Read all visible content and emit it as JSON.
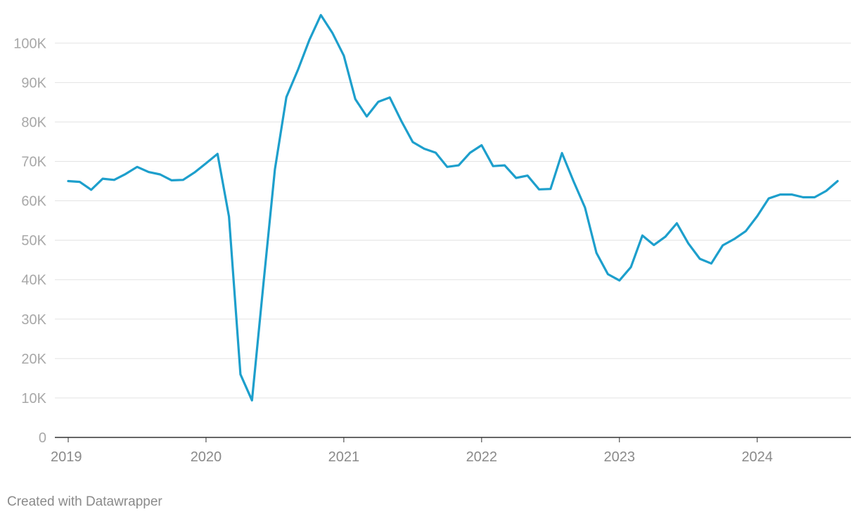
{
  "chart_data": {
    "type": "line",
    "title": "",
    "xlabel": "",
    "ylabel": "",
    "ylim": [
      0,
      107000
    ],
    "y_ticks": [
      {
        "value": 0,
        "label": "0"
      },
      {
        "value": 10000,
        "label": "10K"
      },
      {
        "value": 20000,
        "label": "20K"
      },
      {
        "value": 30000,
        "label": "30K"
      },
      {
        "value": 40000,
        "label": "40K"
      },
      {
        "value": 50000,
        "label": "50K"
      },
      {
        "value": 60000,
        "label": "60K"
      },
      {
        "value": 70000,
        "label": "70K"
      },
      {
        "value": 80000,
        "label": "80K"
      },
      {
        "value": 90000,
        "label": "90K"
      },
      {
        "value": 100000,
        "label": "100K"
      }
    ],
    "x_ticks": [
      "2019",
      "2020",
      "2021",
      "2022",
      "2023",
      "2024"
    ],
    "x_range": [
      "2019-01",
      "2024-08"
    ],
    "grid": true,
    "legend": "none",
    "line_color": "#1d9fcc",
    "series": [
      {
        "x": [
          "2019-01",
          "2019-02",
          "2019-03",
          "2019-04",
          "2019-05",
          "2019-06",
          "2019-07",
          "2019-08",
          "2019-09",
          "2019-10",
          "2019-11",
          "2019-12",
          "2020-01",
          "2020-02",
          "2020-03",
          "2020-04",
          "2020-05",
          "2020-06",
          "2020-07",
          "2020-08",
          "2020-09",
          "2020-10",
          "2020-11",
          "2020-12",
          "2021-01",
          "2021-02",
          "2021-03",
          "2021-04",
          "2021-05",
          "2021-06",
          "2021-07",
          "2021-08",
          "2021-09",
          "2021-10",
          "2021-11",
          "2021-12",
          "2022-01",
          "2022-02",
          "2022-03",
          "2022-04",
          "2022-05",
          "2022-06",
          "2022-07",
          "2022-08",
          "2022-09",
          "2022-10",
          "2022-11",
          "2022-12",
          "2023-01",
          "2023-02",
          "2023-03",
          "2023-04",
          "2023-05",
          "2023-06",
          "2023-07",
          "2023-08",
          "2023-09",
          "2023-10",
          "2023-11",
          "2023-12",
          "2024-01",
          "2024-02",
          "2024-03",
          "2024-04",
          "2024-05",
          "2024-06",
          "2024-07",
          "2024-08"
        ],
        "values": [
          65000,
          64800,
          62800,
          65600,
          65300,
          66800,
          68600,
          67300,
          66700,
          65200,
          65300,
          67200,
          69500,
          71900,
          56000,
          16000,
          9400,
          39000,
          68000,
          86300,
          93200,
          100800,
          107100,
          102600,
          96800,
          85800,
          81400,
          85100,
          86200,
          80300,
          74900,
          73200,
          72200,
          68600,
          69000,
          72200,
          74100,
          68800,
          69000,
          65800,
          66400,
          62900,
          63000,
          72100,
          65000,
          58300,
          46800,
          41400,
          39800,
          43200,
          51200,
          48800,
          50900,
          54300,
          49200,
          45300,
          44100,
          48700,
          50300,
          52300,
          56100,
          60600,
          61600,
          61600,
          60900,
          60900,
          62500,
          65000
        ]
      }
    ]
  },
  "footer": {
    "credit": "Created with Datawrapper"
  }
}
